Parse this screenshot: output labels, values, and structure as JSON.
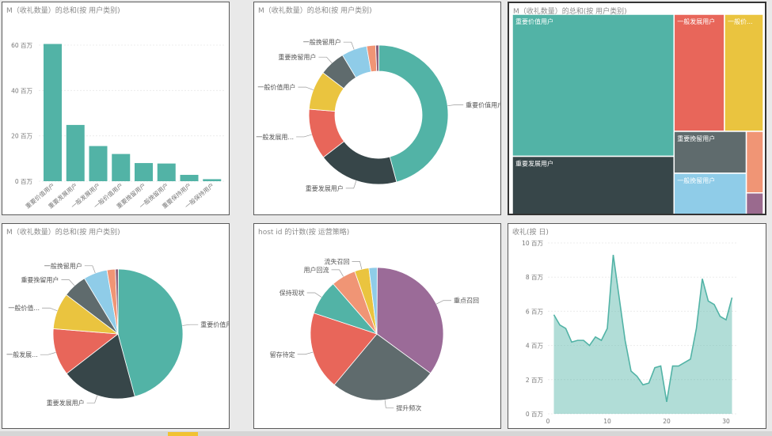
{
  "charts": {
    "bar": {
      "title": "M（收礼数量）的总和(按 用户类别)",
      "chart_data": {
        "type": "bar",
        "categories": [
          "重要价值用户",
          "重要发展用户",
          "一般发展用户",
          "一般价值用户",
          "重要挽留用户",
          "一般挽留用户",
          "重要保持用户",
          "一般保持用户"
        ],
        "values": [
          60.5,
          24.8,
          15.5,
          12.0,
          8.0,
          7.8,
          2.8,
          0.9
        ],
        "ylim": [
          0,
          60
        ],
        "yticks": [
          "0 百万",
          "20 百万",
          "40 百万",
          "60 百万"
        ],
        "ytick_values": [
          0,
          20,
          40,
          60
        ],
        "color": "#52b3a6"
      }
    },
    "donut": {
      "title": "M（收礼数量）的总和(按 用户类别)",
      "chart_data": {
        "type": "pie",
        "donut": true,
        "slices": [
          {
            "label": "重要价值用户",
            "value": 44.0,
            "color": "#52b3a6"
          },
          {
            "label": "重要发展用户",
            "value": 18.0,
            "color": "#374649"
          },
          {
            "label": "一般发展用",
            "value": 11.3,
            "color": "#e8665a"
          },
          {
            "label": "一般价值用户",
            "value": 8.7,
            "color": "#eac43f"
          },
          {
            "label": "重要挽留用户",
            "value": 5.8,
            "color": "#5f6b6d"
          },
          {
            "label": "一般挽留用户",
            "value": 5.7,
            "color": "#8fcce8"
          },
          {
            "label": "",
            "value": 2.0,
            "color": "#f09575"
          },
          {
            "label": "",
            "value": 0.7,
            "color": "#8a5d7a"
          }
        ],
        "callouts": [
          "重要价值用户",
          "重要发展用户",
          "一般发展用...",
          "一般价值用户",
          "重要挽留用户",
          "一般挽留用户"
        ]
      }
    },
    "treemap": {
      "title": "M（收礼数量）的总和(按 用户类别)",
      "chart_data": {
        "type": "treemap",
        "items": [
          {
            "label": "重要价值用户",
            "value": 44.0,
            "color": "#52b3a6"
          },
          {
            "label": "重要发展用户",
            "value": 18.0,
            "color": "#374649"
          },
          {
            "label": "一般发展用户",
            "value": 11.3,
            "color": "#e8665a"
          },
          {
            "label": "一般价...",
            "value": 8.7,
            "color": "#eac43f"
          },
          {
            "label": "重要挽留用户",
            "value": 5.8,
            "color": "#5f6b6d"
          },
          {
            "label": "一般挽留用户",
            "value": 5.7,
            "color": "#8fcce8"
          },
          {
            "label": "",
            "value": 2.0,
            "color": "#f09575"
          },
          {
            "label": "",
            "value": 0.7,
            "color": "#9a6a8e"
          }
        ]
      }
    },
    "pie1": {
      "title": "M（收礼数量）的总和(按 用户类别)",
      "chart_data": {
        "type": "pie",
        "slices": [
          {
            "label": "重要价值用户",
            "value": 44.0,
            "color": "#52b3a6"
          },
          {
            "label": "重要发展用户",
            "value": 18.0,
            "color": "#374649"
          },
          {
            "label": "一般发展...",
            "value": 11.3,
            "color": "#e8665a"
          },
          {
            "label": "一般价值...",
            "value": 8.7,
            "color": "#eac43f"
          },
          {
            "label": "重要挽留用户",
            "value": 5.8,
            "color": "#5f6b6d"
          },
          {
            "label": "一般挽留用户",
            "value": 5.7,
            "color": "#8fcce8"
          },
          {
            "label": "",
            "value": 2.0,
            "color": "#f09575"
          },
          {
            "label": "",
            "value": 0.7,
            "color": "#8a5d7a"
          }
        ]
      }
    },
    "pie2": {
      "title": "host id 的计数(按 运营策略)",
      "chart_data": {
        "type": "pie",
        "slices": [
          {
            "label": "重点召回",
            "value": 35.0,
            "color": "#9b6b98"
          },
          {
            "label": "提升频次",
            "value": 26.0,
            "color": "#5f6b6d"
          },
          {
            "label": "留存待定",
            "value": 19.0,
            "color": "#e8665a"
          },
          {
            "label": "保持现状",
            "value": 8.5,
            "color": "#52b3a6"
          },
          {
            "label": "用户回流",
            "value": 6.0,
            "color": "#f09575"
          },
          {
            "label": "流失召回",
            "value": 3.5,
            "color": "#eac43f"
          },
          {
            "label": "",
            "value": 2.0,
            "color": "#8fcce8"
          }
        ]
      }
    },
    "area": {
      "title": "收礼(按 日)",
      "chart_data": {
        "type": "area",
        "x": [
          1,
          2,
          3,
          4,
          5,
          6,
          7,
          8,
          9,
          10,
          11,
          12,
          13,
          14,
          15,
          16,
          17,
          18,
          19,
          20,
          21,
          22,
          23,
          24,
          25,
          26,
          27,
          28,
          29,
          30,
          31
        ],
        "y": [
          5.8,
          5.2,
          5.0,
          4.2,
          4.3,
          4.3,
          4.0,
          4.5,
          4.3,
          5.0,
          9.3,
          6.8,
          4.3,
          2.5,
          2.2,
          1.7,
          1.8,
          2.7,
          2.8,
          0.7,
          2.8,
          2.8,
          3.0,
          3.2,
          5.0,
          7.9,
          6.6,
          6.4,
          5.7,
          5.5,
          6.8
        ],
        "xlim": [
          0,
          32
        ],
        "ylim": [
          0,
          10
        ],
        "xticks": [
          0,
          10,
          20,
          30
        ],
        "yticks": [
          "0 百万",
          "2 百万",
          "4 百万",
          "6 百万",
          "8 百万",
          "10 百万"
        ],
        "ytick_values": [
          0,
          2,
          4,
          6,
          8,
          10
        ],
        "color": "#52b3a6"
      }
    }
  }
}
